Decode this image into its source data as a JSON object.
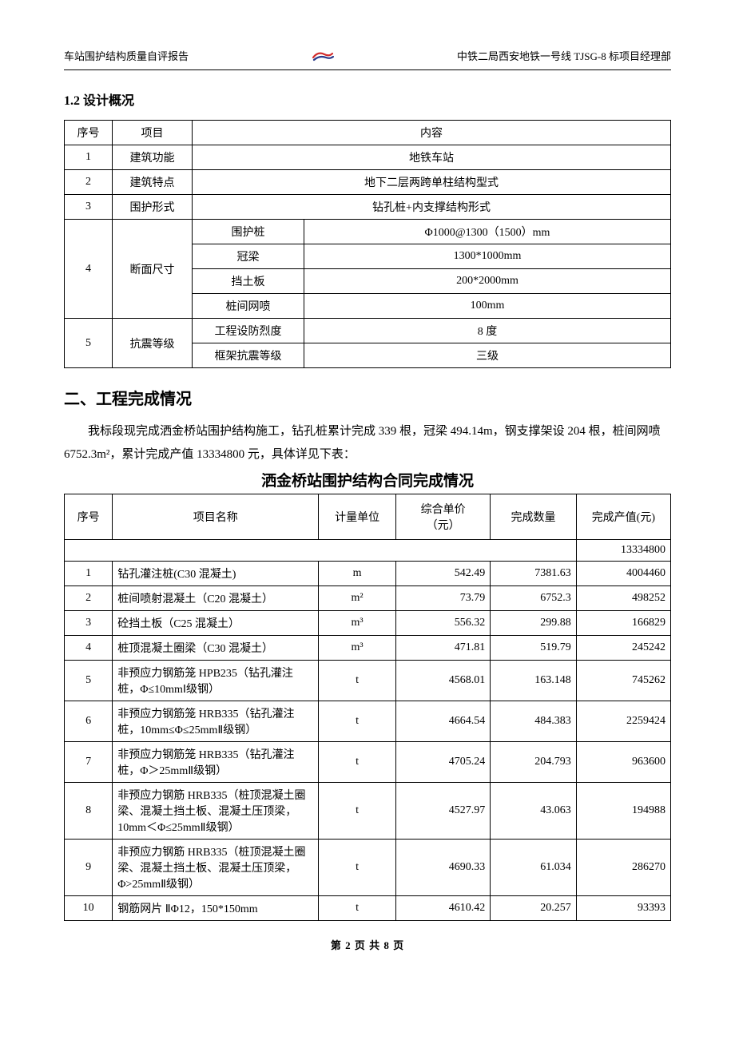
{
  "header": {
    "left": "车站围护结构质量自评报告",
    "right": "中铁二局西安地铁一号线 TJSG-8 标项目经理部"
  },
  "section1_2_title": "1.2 设计概况",
  "t1": {
    "headers": {
      "seq": "序号",
      "item": "项目",
      "content": "内容"
    },
    "rows": [
      {
        "seq": "1",
        "item": "建筑功能",
        "content": "地铁车站"
      },
      {
        "seq": "2",
        "item": "建筑特点",
        "content": "地下二层两跨单柱结构型式"
      },
      {
        "seq": "3",
        "item": "围护形式",
        "content": "钻孔桩+内支撑结构形式"
      }
    ],
    "row4": {
      "seq": "4",
      "item": "断面尺寸",
      "sub": [
        {
          "k": "围护桩",
          "v": "Φ1000@1300（1500）mm"
        },
        {
          "k": "冠梁",
          "v": "1300*1000mm"
        },
        {
          "k": "挡土板",
          "v": "200*2000mm"
        },
        {
          "k": "桩间网喷",
          "v": "100mm"
        }
      ]
    },
    "row5": {
      "seq": "5",
      "item": "抗震等级",
      "sub": [
        {
          "k": "工程设防烈度",
          "v": "8 度"
        },
        {
          "k": "框架抗震等级",
          "v": "三级"
        }
      ]
    }
  },
  "section2_title": "二、工程完成情况",
  "para1": "我标段现完成洒金桥站围护结构施工，钻孔桩累计完成 339 根，冠梁 494.14m，钢支撑架设 204 根，桩间网喷 6752.3m²，累计完成产值 13334800 元，具体详见下表：",
  "t2_title": "洒金桥站围护结构合同完成情况",
  "t2": {
    "headers": {
      "seq": "序号",
      "name": "项目名称",
      "unit": "计量单位",
      "price": "综合单价\n（元）",
      "qty": "完成数量",
      "value": "完成产值(元)"
    },
    "total_value": "13334800",
    "rows": [
      {
        "seq": "1",
        "name": "钻孔灌注桩(C30 混凝土)",
        "unit": "m",
        "price": "542.49",
        "qty": "7381.63",
        "value": "4004460"
      },
      {
        "seq": "2",
        "name": "桩间喷射混凝土（C20 混凝土）",
        "unit": "m²",
        "price": "73.79",
        "qty": "6752.3",
        "value": "498252"
      },
      {
        "seq": "3",
        "name": "砼挡土板（C25 混凝土）",
        "unit": "m³",
        "price": "556.32",
        "qty": "299.88",
        "value": "166829"
      },
      {
        "seq": "4",
        "name": "桩顶混凝土圈梁（C30 混凝土）",
        "unit": "m³",
        "price": "471.81",
        "qty": "519.79",
        "value": "245242"
      },
      {
        "seq": "5",
        "name": "非预应力钢筋笼 HPB235（钻孔灌注桩，Φ≤10mmⅠ级钢）",
        "unit": "t",
        "price": "4568.01",
        "qty": "163.148",
        "value": "745262"
      },
      {
        "seq": "6",
        "name": "非预应力钢筋笼 HRB335（钻孔灌注桩，10mm≤Φ≤25mmⅡ级钢）",
        "unit": "t",
        "price": "4664.54",
        "qty": "484.383",
        "value": "2259424"
      },
      {
        "seq": "7",
        "name": "非预应力钢筋笼 HRB335（钻孔灌注桩，Φ＞25mmⅡ级钢）",
        "unit": "t",
        "price": "4705.24",
        "qty": "204.793",
        "value": "963600"
      },
      {
        "seq": "8",
        "name": "非预应力钢筋 HRB335（桩顶混凝土圈梁、混凝土挡土板、混凝土压顶梁，10mm＜Φ≤25mmⅡ级钢）",
        "unit": "t",
        "price": "4527.97",
        "qty": "43.063",
        "value": "194988"
      },
      {
        "seq": "9",
        "name": "非预应力钢筋 HRB335（桩顶混凝土圈梁、混凝土挡土板、混凝土压顶梁，Φ>25mmⅡ级钢）",
        "unit": "t",
        "price": "4690.33",
        "qty": "61.034",
        "value": "286270"
      },
      {
        "seq": "10",
        "name": "钢筋网片 ⅡΦ12，150*150mm",
        "unit": "t",
        "price": "4610.42",
        "qty": "20.257",
        "value": "93393"
      }
    ]
  },
  "footer": "第 2 页 共 8 页",
  "colors": {
    "text": "#000000",
    "border": "#000000",
    "logo_red": "#d22b2b",
    "logo_blue": "#2a3a8a",
    "bg": "#ffffff"
  }
}
